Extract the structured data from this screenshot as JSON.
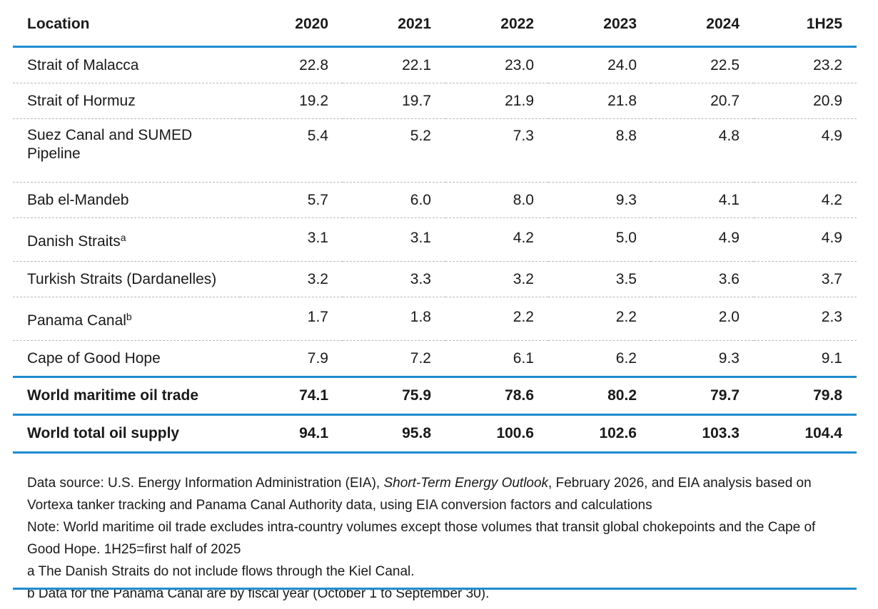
{
  "chart_data": {
    "type": "table",
    "columns": [
      "Location",
      "2020",
      "2021",
      "2022",
      "2023",
      "2024",
      "1H25"
    ],
    "rows": [
      {
        "location": "Strait of Malacca",
        "sup": "",
        "values": [
          "22.8",
          "22.1",
          "23.0",
          "24.0",
          "22.5",
          "23.2"
        ]
      },
      {
        "location": "Strait of Hormuz",
        "sup": "",
        "values": [
          "19.2",
          "19.7",
          "21.9",
          "21.8",
          "20.7",
          "20.9"
        ]
      },
      {
        "location": "Suez Canal and SUMED Pipeline",
        "sup": "",
        "values": [
          "5.4",
          "5.2",
          "7.3",
          "8.8",
          "4.8",
          "4.9"
        ]
      },
      {
        "location": "Bab el-Mandeb",
        "sup": "",
        "values": [
          "5.7",
          "6.0",
          "8.0",
          "9.3",
          "4.1",
          "4.2"
        ]
      },
      {
        "location": "Danish Straits",
        "sup": "a",
        "values": [
          "3.1",
          "3.1",
          "4.2",
          "5.0",
          "4.9",
          "4.9"
        ]
      },
      {
        "location": "Turkish Straits (Dardanelles)",
        "sup": "",
        "values": [
          "3.2",
          "3.3",
          "3.2",
          "3.5",
          "3.6",
          "3.7"
        ]
      },
      {
        "location": "Panama Canal",
        "sup": "b",
        "values": [
          "1.7",
          "1.8",
          "2.2",
          "2.2",
          "2.0",
          "2.3"
        ]
      },
      {
        "location": "Cape of Good Hope",
        "sup": "",
        "values": [
          "7.9",
          "7.2",
          "6.1",
          "6.2",
          "9.3",
          "9.1"
        ]
      }
    ],
    "totals": [
      {
        "location": "World maritime oil trade",
        "values": [
          "74.1",
          "75.9",
          "78.6",
          "80.2",
          "79.7",
          "79.8"
        ]
      },
      {
        "location": "World total oil supply",
        "values": [
          "94.1",
          "95.8",
          "100.6",
          "102.6",
          "103.3",
          "104.4"
        ]
      }
    ]
  },
  "notes": {
    "source_prefix": "Data source: U.S. Energy Information Administration (EIA), ",
    "source_title": "Short-Term Energy Outlook",
    "source_suffix": ", February 2026, and EIA analysis based on Vortexa tanker tracking and Panama Canal Authority data, using EIA conversion factors and calculations",
    "note": "Note: World maritime oil trade excludes intra-country volumes except those volumes that transit global chokepoints and the Cape of Good Hope. 1H25=first half of 2025",
    "footnote_a": "a The Danish Straits do not include flows through the Kiel Canal.",
    "footnote_b": "b Data for the Panama Canal are by fiscal year (October 1 to September 30)."
  },
  "colors": {
    "rule": "#1f8ccf",
    "dashed": "#b9b9b9",
    "text": "#1a1a1a"
  }
}
